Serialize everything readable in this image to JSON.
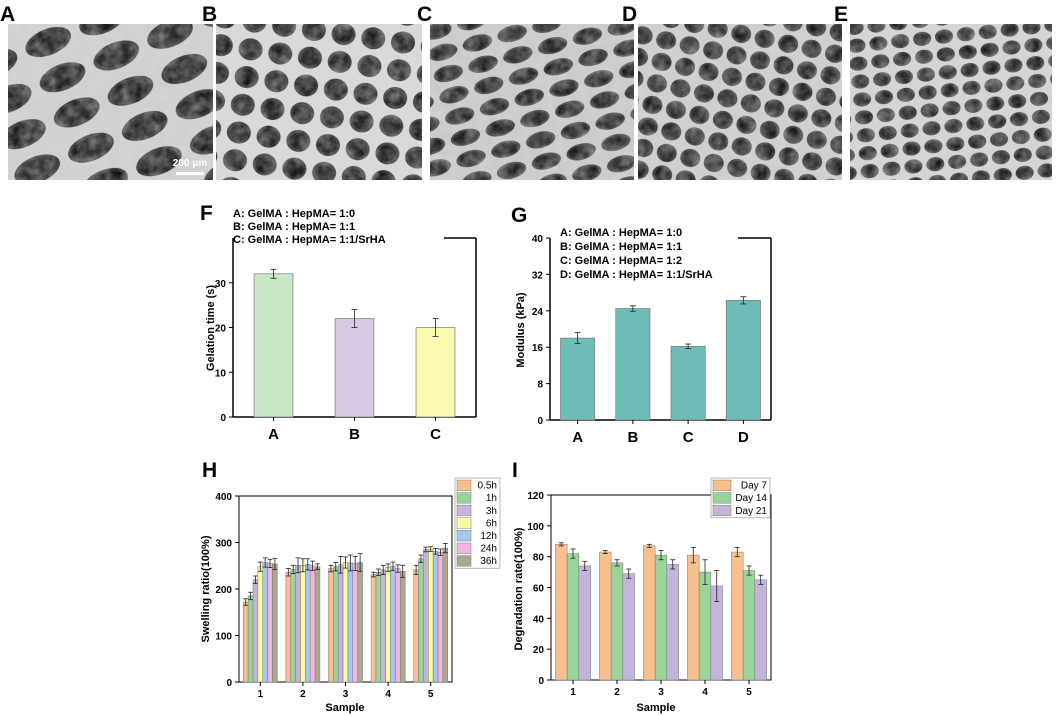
{
  "panel_letters": [
    "A",
    "B",
    "C",
    "D",
    "E",
    "F",
    "G",
    "H",
    "I"
  ],
  "sem": {
    "panels": [
      "A",
      "B",
      "C",
      "D",
      "E"
    ],
    "scale_bar_label": "200 μm"
  },
  "colors": {
    "F": [
      "#c7e8c6",
      "#d7c8e4",
      "#fafab0"
    ],
    "G": "#6dbcb8",
    "time": [
      "#f9c08f",
      "#9bd49b",
      "#c3b4dc",
      "#fafaa0",
      "#a6c8ee",
      "#f7b4de",
      "#a9a98e"
    ],
    "day": [
      "#f9c08f",
      "#9bd49b",
      "#c3b4dc"
    ]
  },
  "chart_data": [
    {
      "panel": "F",
      "type": "bar",
      "categories": [
        "A",
        "B",
        "C"
      ],
      "values": [
        32,
        22,
        20
      ],
      "errors": [
        1,
        2,
        2
      ],
      "ylabel": "Gelation time (s)",
      "ylim": [
        0,
        40
      ],
      "yticks": [
        "0",
        "10",
        "20",
        "30"
      ],
      "legend": [
        "A: GelMA : HepMA= 1:0",
        "B: GelMA : HepMA= 1:1",
        "C: GelMA : HepMA= 1:1/SrHA"
      ],
      "grid": false
    },
    {
      "panel": "G",
      "type": "bar",
      "categories": [
        "A",
        "B",
        "C",
        "D"
      ],
      "values": [
        18,
        24.5,
        16.2,
        26.3
      ],
      "errors": [
        1.2,
        0.6,
        0.5,
        0.8
      ],
      "ylabel": "Modulus (kPa)",
      "ylim": [
        0,
        40
      ],
      "yticks": [
        "0",
        "8",
        "16",
        "24",
        "32",
        "40"
      ],
      "legend": [
        "A: GelMA : HepMA= 1:0",
        "B: GelMA : HepMA= 1:1",
        "C: GelMA : HepMA= 1:2",
        "D: GelMA : HepMA= 1:1/SrHA"
      ],
      "grid": false
    },
    {
      "panel": "H",
      "type": "bar",
      "categories": [
        "1",
        "2",
        "3",
        "4",
        "5"
      ],
      "xlabel": "Sample",
      "ylabel": "Swelling ratio(100%)",
      "ylim": [
        0,
        400
      ],
      "yticks": [
        "0",
        "100",
        "200",
        "300",
        "400"
      ],
      "legend_position": "top-right",
      "series": [
        {
          "name": "0.5h",
          "values": [
            172,
            236,
            244,
            231,
            241
          ],
          "errors": [
            7,
            8,
            7,
            5,
            10
          ]
        },
        {
          "name": "1h",
          "values": [
            185,
            242,
            248,
            236,
            265
          ],
          "errors": [
            8,
            9,
            9,
            7,
            8
          ]
        },
        {
          "name": "3h",
          "values": [
            220,
            251,
            252,
            241,
            285
          ],
          "errors": [
            8,
            16,
            18,
            10,
            5
          ]
        },
        {
          "name": "6h",
          "values": [
            248,
            251,
            257,
            246,
            286
          ],
          "errors": [
            10,
            14,
            12,
            8,
            5
          ]
        },
        {
          "name": "12h",
          "values": [
            257,
            253,
            256,
            249,
            281
          ],
          "errors": [
            10,
            12,
            17,
            9,
            6
          ]
        },
        {
          "name": "24h",
          "values": [
            255,
            250,
            255,
            244,
            279
          ],
          "errors": [
            9,
            10,
            15,
            8,
            7
          ]
        },
        {
          "name": "36h",
          "values": [
            254,
            248,
            257,
            238,
            288
          ],
          "errors": [
            12,
            6,
            19,
            13,
            10
          ]
        }
      ],
      "grid": false
    },
    {
      "panel": "I",
      "type": "bar",
      "categories": [
        "1",
        "2",
        "3",
        "4",
        "5"
      ],
      "xlabel": "Sample",
      "ylabel": "Degradation rate(100%)",
      "ylim": [
        0,
        120
      ],
      "yticks": [
        "0",
        "20",
        "40",
        "60",
        "80",
        "100",
        "120"
      ],
      "legend_position": "top-right",
      "series": [
        {
          "name": "Day 7",
          "values": [
            88,
            83,
            87,
            81,
            83
          ],
          "errors": [
            1,
            1,
            1,
            5,
            3
          ]
        },
        {
          "name": "Day 14",
          "values": [
            82,
            76,
            81,
            70,
            71
          ],
          "errors": [
            3,
            2,
            3,
            8,
            3
          ]
        },
        {
          "name": "Day 21",
          "values": [
            74,
            69,
            75,
            61,
            65
          ],
          "errors": [
            3,
            3,
            3,
            10,
            3
          ]
        }
      ],
      "grid": false
    }
  ]
}
